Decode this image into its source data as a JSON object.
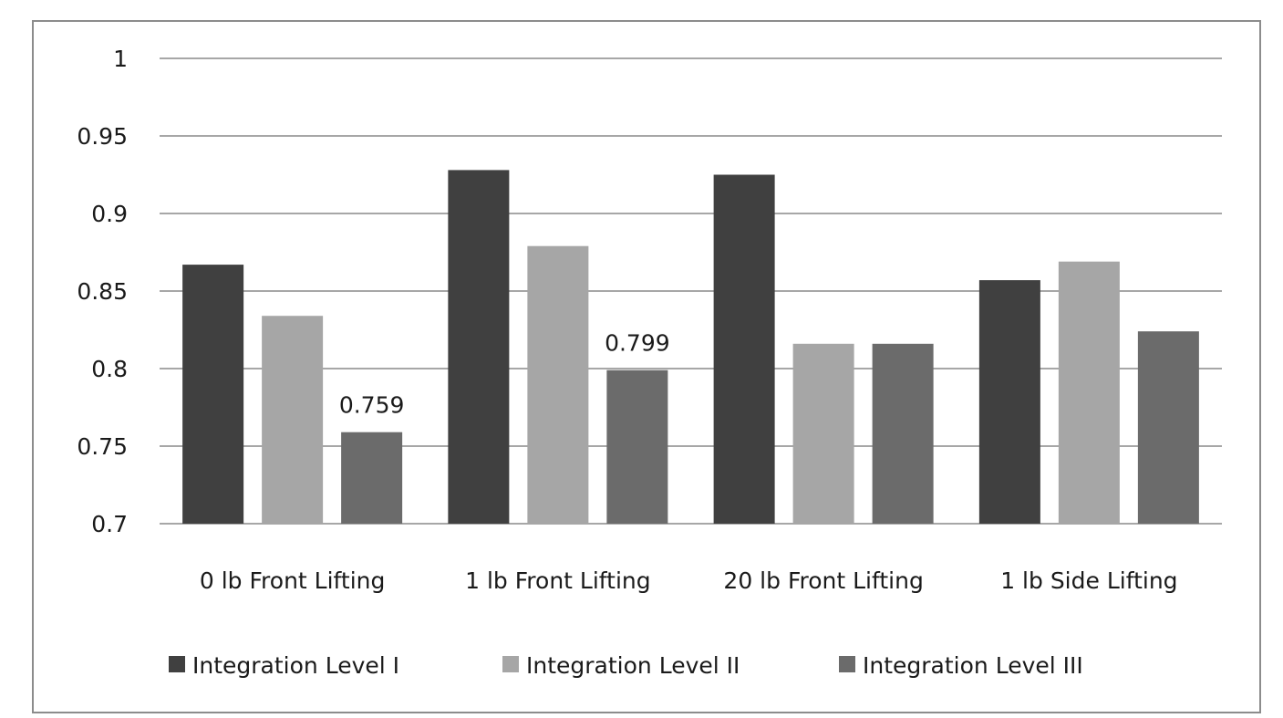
{
  "chart_data": {
    "type": "bar",
    "categories": [
      "0 lb Front Lifting",
      "1 lb Front Lifting",
      "20 lb Front Lifting",
      "1 lb Side Lifting"
    ],
    "series": [
      {
        "name": "Integration Level I",
        "color": "#404040",
        "values": [
          0.867,
          0.928,
          0.925,
          0.857
        ]
      },
      {
        "name": "Integration Level II",
        "color": "#a6a6a6",
        "values": [
          0.834,
          0.879,
          0.816,
          0.869
        ]
      },
      {
        "name": "Integration Level III",
        "color": "#6b6b6b",
        "values": [
          0.759,
          0.799,
          0.816,
          0.824
        ]
      }
    ],
    "data_labels": [
      {
        "series": 2,
        "category": 0,
        "text": "0.759"
      },
      {
        "series": 2,
        "category": 1,
        "text": "0.799"
      }
    ],
    "yticks": [
      "0.7",
      "0.75",
      "0.8",
      "0.85",
      "0.9",
      "0.95",
      "1"
    ],
    "ylim": [
      0.7,
      1.0
    ],
    "grid": true,
    "legend_position": "bottom"
  }
}
